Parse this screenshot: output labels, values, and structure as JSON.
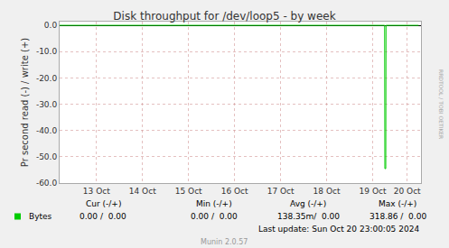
{
  "chart_data": {
    "type": "line",
    "title": "Disk throughput for /dev/loop5 - by week",
    "ylabel": "Pr second read (-) / write (+)",
    "x": [
      12.65,
      19.71,
      19.715,
      19.735,
      19.74,
      20.45
    ],
    "series": [
      {
        "name": "Bytes",
        "color": "#00cc00",
        "values": [
          0,
          0,
          -54.5,
          -54.5,
          0,
          0
        ]
      }
    ],
    "xlim": [
      12.65,
      20.5
    ],
    "xticks": [
      {
        "value": 13.45,
        "label": "13 Oct"
      },
      {
        "value": 14.45,
        "label": "14 Oct"
      },
      {
        "value": 15.45,
        "label": "15 Oct"
      },
      {
        "value": 16.45,
        "label": "16 Oct"
      },
      {
        "value": 17.45,
        "label": "17 Oct"
      },
      {
        "value": 18.45,
        "label": "18 Oct"
      },
      {
        "value": 19.45,
        "label": "19 Oct"
      },
      {
        "value": 20.2,
        "label": "20 Oct"
      }
    ],
    "ylim": [
      -60,
      1.4
    ],
    "yticks": [
      {
        "value": 0,
        "label": "0.0"
      },
      {
        "value": -10,
        "label": "-10.0"
      },
      {
        "value": -20,
        "label": "-20.0"
      },
      {
        "value": -30,
        "label": "-30.0"
      },
      {
        "value": -40,
        "label": "-40.0"
      },
      {
        "value": -50,
        "label": "-50.0"
      },
      {
        "value": -60,
        "label": "-60.0"
      }
    ],
    "grid": true,
    "annotations": [
      "Cur (-/+)",
      "Min (-/+)",
      "Avg (-/+)",
      "Max (-/+)",
      "0.00 /  0.00",
      "0.00 /  0.00",
      "138.35m/  0.00",
      "318.86 /  0.00",
      "Last update: Sun Oct 20 23:00:05 2024",
      "Munin 2.0.57",
      "RRDTOOL / TOBI OETIKER"
    ]
  }
}
